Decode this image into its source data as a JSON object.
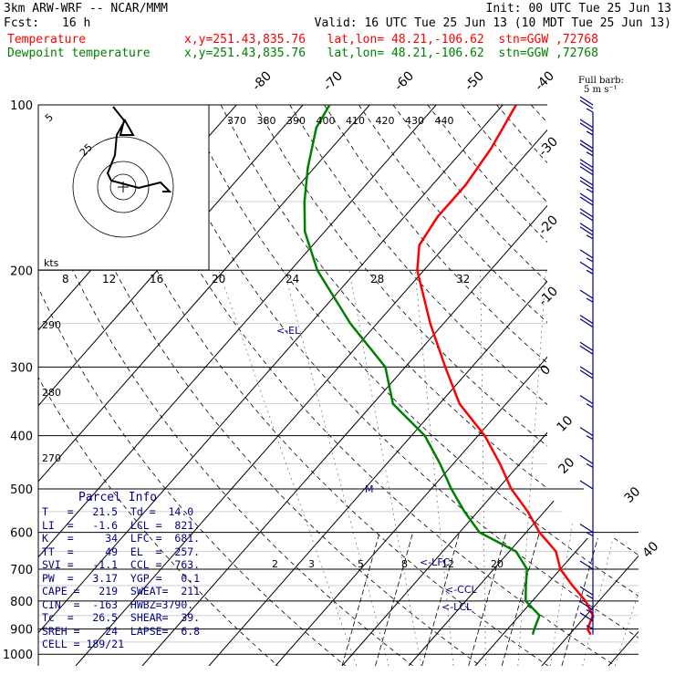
{
  "header": {
    "model": "3km ARW-WRF -- NCAR/MMM",
    "init": "Init: 00 UTC Tue 25 Jun 13",
    "fcst_label": "Fcst:",
    "fcst_value": "16 h",
    "valid": "Valid: 16 UTC Tue 25 Jun 13 (10 MDT Tue 25 Jun 13)",
    "temp_label": "Temperature",
    "temp_info": "x,y=251.43,835.76   lat,lon= 48.21,-106.62  stn=GGW ,72768",
    "dew_label": "Dewpoint temperature",
    "dew_info": "x,y=251.43,835.76   lat,lon= 48.21,-106.62  stn=GGW ,72768"
  },
  "colors": {
    "temperature": "#ff0000",
    "dewpoint": "#008000",
    "annotation": "#000080",
    "barb": "#000080"
  },
  "chart_data": {
    "type": "line",
    "pressure_levels": [
      "100",
      "200",
      "300",
      "400",
      "500",
      "600",
      "700",
      "800",
      "900",
      "1000"
    ],
    "skewed_temp_labels": [
      "-80",
      "-70",
      "-60",
      "-50",
      "-40",
      "-30",
      "-20",
      "-10",
      "0",
      "10",
      "20",
      "30",
      "40"
    ],
    "theta_labels": [
      "370",
      "380",
      "390",
      "400",
      "410",
      "420",
      "430",
      "440"
    ],
    "theta_side_labels": [
      "290",
      "280",
      "270"
    ],
    "mixing_ratio_labels": [
      "2",
      "3",
      "5",
      "8",
      "12",
      "20"
    ],
    "hodograph_speed_labels": [
      "8",
      "12",
      "16",
      "20",
      "24",
      "28",
      "32"
    ],
    "hodograph": {
      "units_label": "kts",
      "ring_labels": [
        "5",
        "25"
      ]
    },
    "barb_legend": {
      "line1": "Full barb:",
      "line2": "5 m s⁻¹"
    },
    "annotations": {
      "el": "<-EL",
      "m": "M",
      "lfc": "<-LFC",
      "ccl": "<-CCL",
      "lcl": "<-LCL"
    },
    "series": [
      {
        "name": "Temperature",
        "points": [
          [
            921,
            23.2
          ],
          [
            900,
            22
          ],
          [
            850,
            21
          ],
          [
            800,
            18
          ],
          [
            750,
            14
          ],
          [
            700,
            10
          ],
          [
            650,
            7
          ],
          [
            600,
            2
          ],
          [
            550,
            -2.5
          ],
          [
            500,
            -8
          ],
          [
            450,
            -13
          ],
          [
            400,
            -19
          ],
          [
            350,
            -27
          ],
          [
            300,
            -34
          ],
          [
            250,
            -42
          ],
          [
            200,
            -51
          ],
          [
            180,
            -54
          ],
          [
            160,
            -55
          ],
          [
            140,
            -55
          ],
          [
            120,
            -56
          ],
          [
            100,
            -58
          ]
        ]
      },
      {
        "name": "Dewpoint temperature",
        "points": [
          [
            921,
            14.5
          ],
          [
            900,
            14
          ],
          [
            850,
            13
          ],
          [
            800,
            9
          ],
          [
            750,
            7
          ],
          [
            700,
            5
          ],
          [
            650,
            1
          ],
          [
            600,
            -7
          ],
          [
            550,
            -12
          ],
          [
            500,
            -17
          ],
          [
            450,
            -22
          ],
          [
            400,
            -28
          ],
          [
            350,
            -37
          ],
          [
            300,
            -43
          ],
          [
            250,
            -54
          ],
          [
            200,
            -66
          ],
          [
            170,
            -73
          ],
          [
            150,
            -77
          ],
          [
            130,
            -81
          ],
          [
            110,
            -85
          ],
          [
            100,
            -86
          ]
        ]
      }
    ],
    "wind_barbs": [
      {
        "p": 100,
        "speed": 25
      },
      {
        "p": 110,
        "speed": 25
      },
      {
        "p": 120,
        "speed": 25
      },
      {
        "p": 130,
        "speed": 30
      },
      {
        "p": 140,
        "speed": 25
      },
      {
        "p": 150,
        "speed": 20
      },
      {
        "p": 160,
        "speed": 20
      },
      {
        "p": 170,
        "speed": 25
      },
      {
        "p": 190,
        "speed": 15
      },
      {
        "p": 200,
        "speed": 15
      },
      {
        "p": 225,
        "speed": 15
      },
      {
        "p": 250,
        "speed": 20
      },
      {
        "p": 280,
        "speed": 20
      },
      {
        "p": 310,
        "speed": 20
      },
      {
        "p": 350,
        "speed": 15
      },
      {
        "p": 400,
        "speed": 15
      },
      {
        "p": 450,
        "speed": 15
      },
      {
        "p": 500,
        "speed": 10
      },
      {
        "p": 600,
        "speed": 15
      },
      {
        "p": 700,
        "speed": 10
      },
      {
        "p": 780,
        "speed": 15
      },
      {
        "p": 830,
        "speed": 15
      },
      {
        "p": 870,
        "speed": 10
      },
      {
        "p": 900,
        "speed": 5
      }
    ]
  },
  "parcel_info": {
    "title": "Parcel Info",
    "rows": [
      "T   =   21.5  Td =  14.0",
      "LI  =   -1.6  LCL =  821.",
      "K   =     34  LFC =  681.",
      "TT  =     49  EL  =  257.",
      "SVI =   -1.1  CCL =  763.",
      "PW  =   3.17  YGP =   0.1",
      "CAPE =   219  SWEAT=  211",
      "CIN  =  -163  HWBZ=3790.",
      "Tc  =   26.5  SHEAR=  39.",
      "SREH =    24  LAPSE=  6.8",
      "CELL = 189/21"
    ]
  }
}
